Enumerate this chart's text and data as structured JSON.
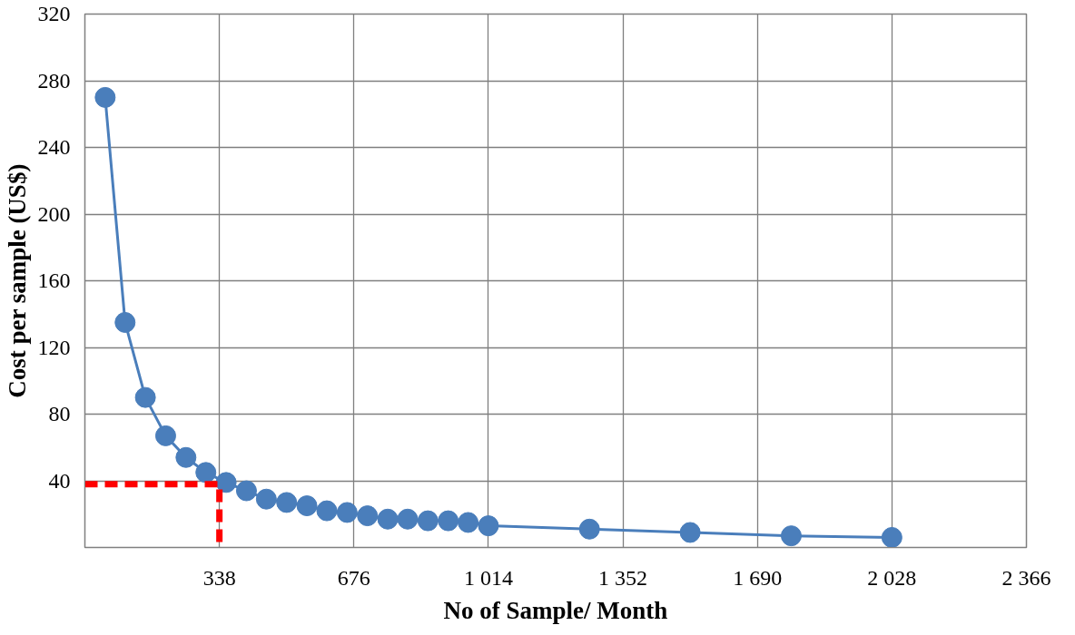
{
  "chart_data": {
    "type": "line",
    "xlabel": "No of Sample/ Month",
    "ylabel": "Cost per sample (US$)",
    "xlim": [
      0,
      2366
    ],
    "ylim": [
      0,
      320
    ],
    "xticks": [
      {
        "value": 338,
        "label": "338"
      },
      {
        "value": 676,
        "label": "676"
      },
      {
        "value": 1014,
        "label": "1 014"
      },
      {
        "value": 1352,
        "label": "1 352"
      },
      {
        "value": 1690,
        "label": "1 690"
      },
      {
        "value": 2028,
        "label": "2 028"
      },
      {
        "value": 2366,
        "label": "2 366"
      }
    ],
    "yticks": [
      40,
      80,
      120,
      160,
      200,
      240,
      280,
      320
    ],
    "grid": true,
    "series": [
      {
        "color": "#4a7ebb",
        "marker": "circle",
        "line_style": "solid",
        "x": [
          51,
          101,
          152,
          203,
          254,
          304,
          355,
          406,
          456,
          507,
          558,
          608,
          659,
          710,
          761,
          811,
          862,
          913,
          963,
          1014,
          1268,
          1521,
          1775,
          2028
        ],
        "values": [
          270,
          135,
          90,
          67,
          54,
          45,
          39,
          34,
          29,
          27,
          25,
          22,
          21,
          19,
          17,
          17,
          16,
          16,
          15,
          13,
          11,
          9,
          7,
          6
        ]
      },
      {
        "color": "#ff0000",
        "marker": "none",
        "line_style": "dashed",
        "x": [
          0,
          338,
          338
        ],
        "values": [
          38,
          38,
          0
        ]
      }
    ]
  }
}
